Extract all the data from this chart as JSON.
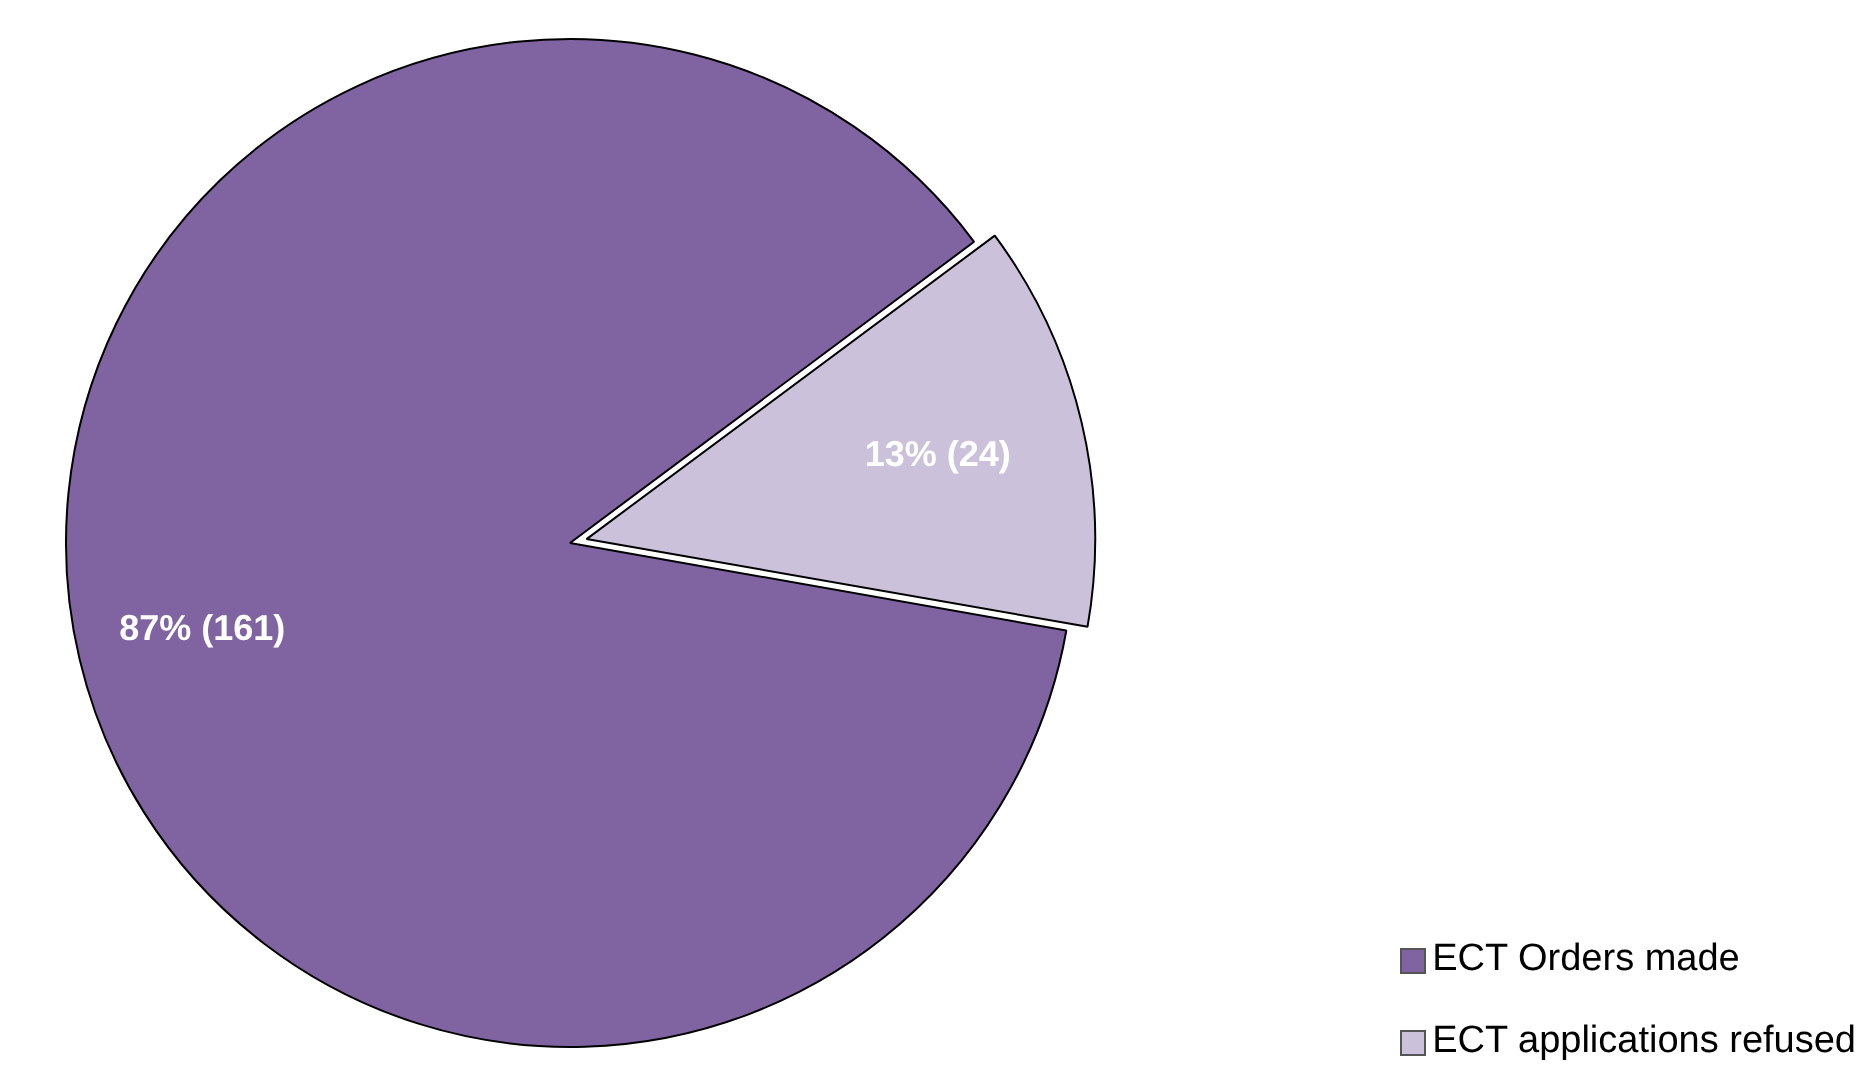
{
  "chart_data": {
    "type": "pie",
    "categories": [
      "ECT Orders made",
      "ECT applications refused"
    ],
    "values": [
      161,
      24
    ],
    "colors": [
      "#8064a2",
      "#ccc1da"
    ],
    "value_labels": [
      "87% (161)",
      "13% (24)"
    ],
    "legend": "bottom right"
  }
}
